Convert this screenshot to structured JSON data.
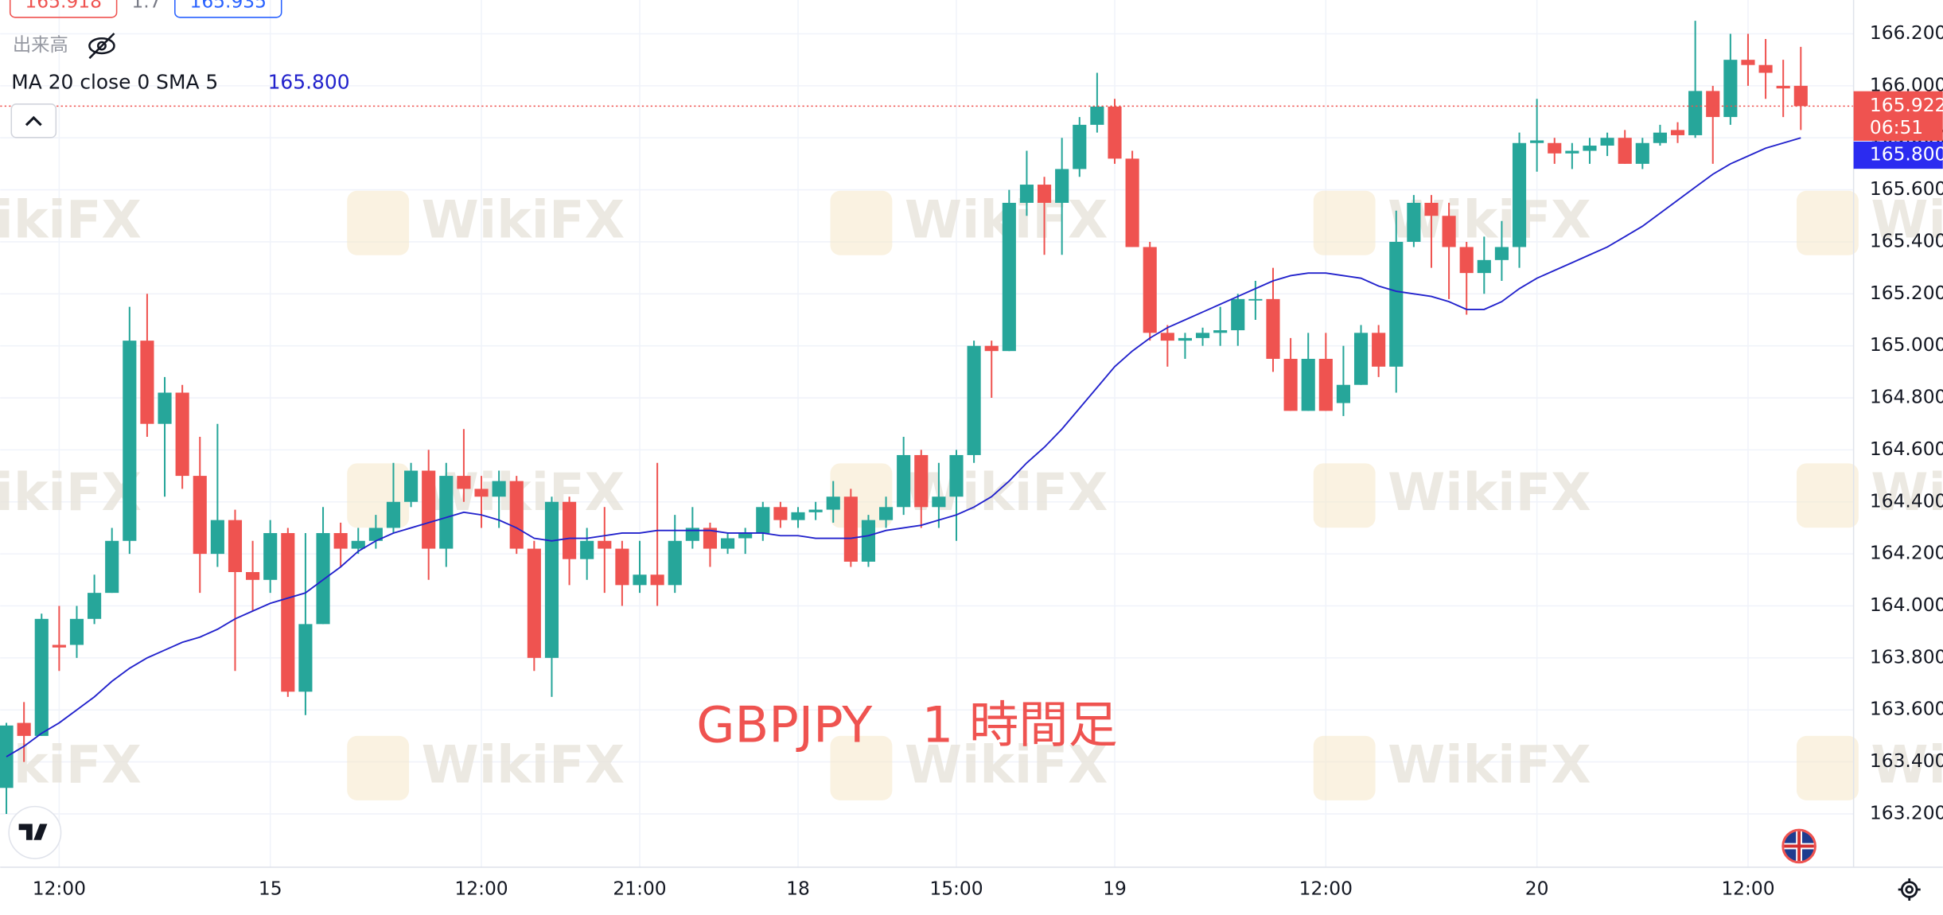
{
  "header": {
    "values": [
      "165.918",
      "1.7",
      "165.935"
    ],
    "volume_label": "出来高"
  },
  "chart_data": {
    "type": "candlestick",
    "annotation": "GBPJPY　1 時間足",
    "watermark": "WikiFX",
    "up_color": "#26a69a",
    "down_color": "#ef5350",
    "grid": true,
    "x": [
      null,
      null,
      null,
      "12:00",
      null,
      null,
      null,
      null,
      null,
      null,
      null,
      null,
      null,
      null,
      null,
      "15",
      null,
      null,
      null,
      null,
      null,
      null,
      null,
      null,
      null,
      null,
      null,
      "12:00",
      null,
      null,
      null,
      null,
      null,
      null,
      null,
      null,
      "21:00",
      null,
      null,
      null,
      null,
      null,
      null,
      null,
      null,
      "18",
      null,
      null,
      null,
      null,
      null,
      null,
      null,
      null,
      "15:00",
      null,
      null,
      null,
      null,
      null,
      null,
      null,
      null,
      "19",
      null,
      null,
      null,
      null,
      null,
      null,
      null,
      null,
      null,
      null,
      null,
      "12:00",
      null,
      null,
      null,
      null,
      null,
      null,
      null,
      null,
      null,
      null,
      null,
      "20",
      null,
      null,
      null,
      null,
      null,
      null,
      null,
      null,
      null,
      null,
      null,
      "12:00",
      null,
      null,
      null
    ],
    "open": [
      163.3,
      163.55,
      163.5,
      163.85,
      163.85,
      163.95,
      164.05,
      164.25,
      165.02,
      164.7,
      164.82,
      164.5,
      164.2,
      164.33,
      164.13,
      164.1,
      164.28,
      163.67,
      163.93,
      164.28,
      164.22,
      164.25,
      164.3,
      164.4,
      164.52,
      164.22,
      164.5,
      164.45,
      164.42,
      164.48,
      164.22,
      163.8,
      164.4,
      164.18,
      164.25,
      164.22,
      164.08,
      164.12,
      164.08,
      164.25,
      164.3,
      164.22,
      164.26,
      164.28,
      164.38,
      164.33,
      164.36,
      164.37,
      164.42,
      164.17,
      164.33,
      164.38,
      164.58,
      164.38,
      164.42,
      164.58,
      165.0,
      164.98,
      165.55,
      165.62,
      165.55,
      165.68,
      165.85,
      165.92,
      165.72,
      165.38,
      165.05,
      165.02,
      165.03,
      165.05,
      165.06,
      165.18,
      165.18,
      164.95,
      164.75,
      164.95,
      164.78,
      164.85,
      165.05,
      164.92,
      165.4,
      165.55,
      165.5,
      165.38,
      165.28,
      165.33,
      165.38,
      165.78,
      165.78,
      165.74,
      165.75,
      165.77,
      165.8,
      165.7,
      165.78,
      165.83,
      165.81,
      165.98,
      165.88,
      166.1,
      166.08,
      166.0,
      166.0
    ],
    "high": [
      163.55,
      163.63,
      163.97,
      164.0,
      164.0,
      164.12,
      164.3,
      165.15,
      165.2,
      164.88,
      164.85,
      164.65,
      164.7,
      164.37,
      164.25,
      164.33,
      164.3,
      164.28,
      164.38,
      164.32,
      164.3,
      164.35,
      164.55,
      164.55,
      164.6,
      164.55,
      164.68,
      164.5,
      164.52,
      164.5,
      164.25,
      164.42,
      164.42,
      164.3,
      164.38,
      164.25,
      164.25,
      164.55,
      164.35,
      164.38,
      164.32,
      164.28,
      164.3,
      164.4,
      164.4,
      164.38,
      164.4,
      164.48,
      164.45,
      164.35,
      164.42,
      164.65,
      164.6,
      164.55,
      164.6,
      165.02,
      165.02,
      165.6,
      165.75,
      165.65,
      165.8,
      165.88,
      166.05,
      165.95,
      165.75,
      165.4,
      165.08,
      165.05,
      165.07,
      165.15,
      165.2,
      165.25,
      165.3,
      165.03,
      165.05,
      165.05,
      165.0,
      165.08,
      165.08,
      165.52,
      165.58,
      165.58,
      165.55,
      165.4,
      165.42,
      165.48,
      165.82,
      165.95,
      165.8,
      165.78,
      165.8,
      165.82,
      165.83,
      165.8,
      165.85,
      165.86,
      166.25,
      166.0,
      166.2,
      166.2,
      166.18,
      166.1,
      166.15
    ],
    "low": [
      163.2,
      163.4,
      163.5,
      163.75,
      163.8,
      163.93,
      164.05,
      164.2,
      164.65,
      164.42,
      164.45,
      164.05,
      164.15,
      163.75,
      163.98,
      164.05,
      163.65,
      163.58,
      163.93,
      164.15,
      164.2,
      164.22,
      164.28,
      164.38,
      164.1,
      164.15,
      164.4,
      164.3,
      164.3,
      164.2,
      163.75,
      163.65,
      164.08,
      164.1,
      164.05,
      164.0,
      164.05,
      164.0,
      164.05,
      164.22,
      164.15,
      164.2,
      164.2,
      164.25,
      164.3,
      164.3,
      164.33,
      164.32,
      164.15,
      164.15,
      164.3,
      164.35,
      164.3,
      164.3,
      164.25,
      164.55,
      164.8,
      164.98,
      165.5,
      165.35,
      165.35,
      165.65,
      165.82,
      165.7,
      165.38,
      165.02,
      164.92,
      164.95,
      165.0,
      165.0,
      165.0,
      165.1,
      164.9,
      164.75,
      164.75,
      164.75,
      164.73,
      164.85,
      164.88,
      164.82,
      165.38,
      165.3,
      165.18,
      165.12,
      165.2,
      165.25,
      165.3,
      165.67,
      165.7,
      165.68,
      165.7,
      165.73,
      165.7,
      165.68,
      165.77,
      165.78,
      165.8,
      165.7,
      165.85,
      166.0,
      165.95,
      165.88,
      165.83
    ],
    "close": [
      163.54,
      163.5,
      163.95,
      163.84,
      163.95,
      164.05,
      164.25,
      165.02,
      164.7,
      164.82,
      164.5,
      164.2,
      164.33,
      164.13,
      164.1,
      164.28,
      163.67,
      163.93,
      164.28,
      164.22,
      164.25,
      164.3,
      164.4,
      164.52,
      164.22,
      164.5,
      164.45,
      164.42,
      164.48,
      164.22,
      163.8,
      164.4,
      164.18,
      164.25,
      164.22,
      164.08,
      164.12,
      164.08,
      164.25,
      164.3,
      164.22,
      164.26,
      164.28,
      164.38,
      164.33,
      164.36,
      164.37,
      164.42,
      164.17,
      164.33,
      164.38,
      164.58,
      164.38,
      164.42,
      164.58,
      165.0,
      164.98,
      165.55,
      165.62,
      165.55,
      165.68,
      165.85,
      165.92,
      165.72,
      165.38,
      165.05,
      165.02,
      165.03,
      165.05,
      165.06,
      165.18,
      165.18,
      164.95,
      164.75,
      164.95,
      164.75,
      164.85,
      165.05,
      164.92,
      165.4,
      165.55,
      165.5,
      165.38,
      165.28,
      165.33,
      165.38,
      165.78,
      165.79,
      165.74,
      165.75,
      165.77,
      165.8,
      165.7,
      165.78,
      165.82,
      165.81,
      165.98,
      165.88,
      166.1,
      166.08,
      166.05,
      165.99,
      165.922
    ],
    "ma": {
      "name": "MA 20 close 0 SMA 5",
      "color": "#2222cc",
      "value_label": "165.800",
      "values": [
        163.42,
        163.46,
        163.51,
        163.55,
        163.6,
        163.65,
        163.71,
        163.76,
        163.8,
        163.83,
        163.86,
        163.88,
        163.91,
        163.95,
        163.98,
        164.01,
        164.03,
        164.05,
        164.1,
        164.15,
        164.21,
        164.25,
        164.28,
        164.3,
        164.32,
        164.34,
        164.36,
        164.35,
        164.33,
        164.3,
        164.26,
        164.25,
        164.26,
        164.26,
        164.27,
        164.28,
        164.28,
        164.29,
        164.29,
        164.29,
        164.29,
        164.28,
        164.28,
        164.28,
        164.27,
        164.27,
        164.26,
        164.26,
        164.26,
        164.27,
        164.29,
        164.3,
        164.31,
        164.33,
        164.35,
        164.38,
        164.42,
        164.48,
        164.55,
        164.61,
        164.68,
        164.76,
        164.84,
        164.92,
        164.98,
        165.03,
        165.07,
        165.1,
        165.13,
        165.16,
        165.19,
        165.22,
        165.25,
        165.27,
        165.28,
        165.28,
        165.27,
        165.26,
        165.23,
        165.21,
        165.2,
        165.19,
        165.17,
        165.14,
        165.14,
        165.17,
        165.22,
        165.26,
        165.29,
        165.32,
        165.35,
        165.38,
        165.42,
        165.46,
        165.51,
        165.56,
        165.61,
        165.66,
        165.7,
        165.73,
        165.76,
        165.78,
        165.8
      ]
    },
    "last_price": 165.922,
    "last_price_label": "165.922",
    "countdown": "06:51",
    "ylim": [
      162.995,
      166.33
    ],
    "yticks": [
      {
        "value": 163.2,
        "label": "163.200"
      },
      {
        "value": 163.4,
        "label": "163.400"
      },
      {
        "value": 163.6,
        "label": "163.600"
      },
      {
        "value": 163.8,
        "label": "163.800"
      },
      {
        "value": 164.0,
        "label": "164.000"
      },
      {
        "value": 164.2,
        "label": "164.200"
      },
      {
        "value": 164.4,
        "label": "164.400"
      },
      {
        "value": 164.6,
        "label": "164.600"
      },
      {
        "value": 164.8,
        "label": "164.800"
      },
      {
        "value": 165.0,
        "label": "165.000"
      },
      {
        "value": 165.2,
        "label": "165.200"
      },
      {
        "value": 165.4,
        "label": "165.400"
      },
      {
        "value": 165.6,
        "label": "165.600"
      },
      {
        "value": 165.8,
        "label": "165.800"
      },
      {
        "value": 166.0,
        "label": "166.000"
      },
      {
        "value": 166.2,
        "label": "166.200"
      }
    ]
  }
}
